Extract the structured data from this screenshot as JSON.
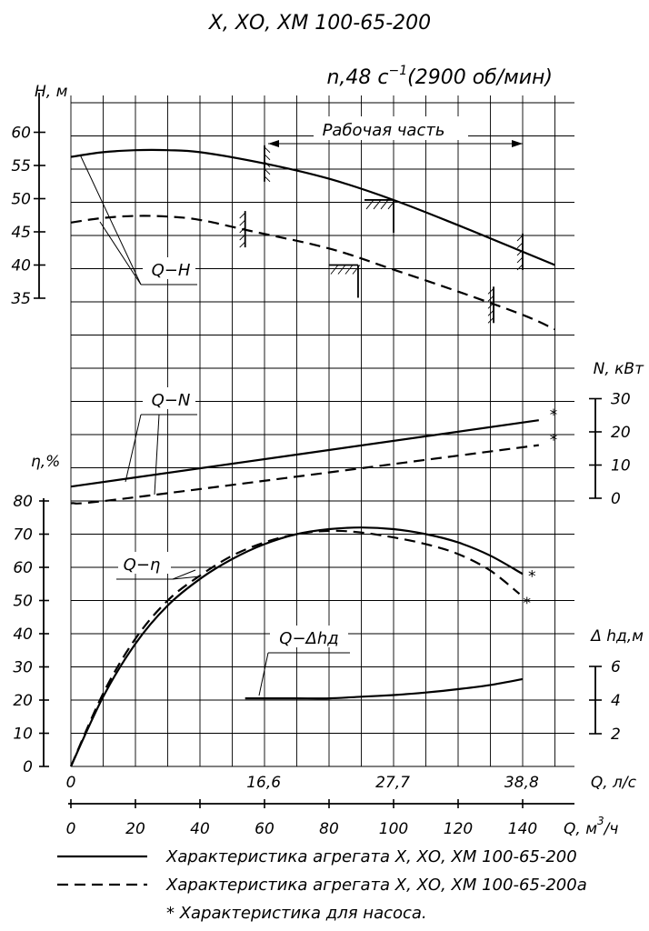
{
  "title": "Х, ХО, ХМ 100-65-200",
  "speed_label": "n,48 с",
  "speed_exp": "−1",
  "speed_rpm": "(2900 об/мин)",
  "working_zone_label": "Рабочая часть",
  "curve_labels": {
    "qh": "Q−H",
    "qn": "Q−N",
    "qeta": "Q−η",
    "qdh": "Q−Δhд"
  },
  "legend": [
    {
      "style": "solid",
      "text": "Характеристика агрегата Х, ХО, ХМ 100-65-200"
    },
    {
      "style": "dashed",
      "text": "Характеристика агрегата Х, ХО, ХМ 100-65-200а"
    }
  ],
  "footnote": "* Характеристика для насоса.",
  "chart_data": {
    "type": "line",
    "x_axes": {
      "q_ls": {
        "label": "Q, л/с",
        "ticks": [
          "0",
          "16,6",
          "27,7",
          "38,8"
        ],
        "tick_values": [
          0,
          16.6,
          27.7,
          38.8
        ]
      },
      "q_m3h": {
        "label": "Q, м",
        "unit_exp": "3",
        "unit_tail": "/ч",
        "ticks": [
          "0",
          "20",
          "40",
          "60",
          "80",
          "100",
          "120",
          "140"
        ],
        "tick_values": [
          0,
          20,
          40,
          60,
          80,
          100,
          120,
          140
        ]
      }
    },
    "xlim_m3h": [
      0,
      156
    ],
    "grid": true,
    "panels": [
      {
        "name": "Q-H",
        "ylabel": "H, м",
        "yticks": [
          "35",
          "40",
          "45",
          "50",
          "55",
          "60"
        ],
        "ylim": [
          35,
          60
        ],
        "series": [
          {
            "style": "solid",
            "x": [
              0,
              10,
              20,
              30,
              40,
              60,
              80,
              100,
              120,
              140,
              150
            ],
            "y": [
              56.3,
              57.0,
              57.3,
              57.3,
              57.0,
              55.3,
              53.0,
              49.8,
              46.0,
              42.0,
              40.0
            ]
          },
          {
            "style": "dashed",
            "x": [
              0,
              10,
              20,
              30,
              40,
              55,
              80,
              100,
              120,
              140,
              150
            ],
            "y": [
              46.4,
              47.1,
              47.4,
              47.3,
              46.8,
              45.2,
              42.5,
              39.3,
              36.0,
              32.5,
              30.3
            ]
          }
        ],
        "working_zone_m3h": [
          60,
          140
        ]
      },
      {
        "name": "Q-N",
        "ylabel": "N, кВт",
        "yticks": [
          "0",
          "10",
          "20",
          "30"
        ],
        "ylim": [
          0,
          30
        ],
        "series": [
          {
            "style": "solid",
            "x": [
              0,
              145
            ],
            "y": [
              3.5,
              23.5
            ]
          },
          {
            "style": "dashed",
            "x": [
              0,
              20,
              145
            ],
            "y": [
              -1.5,
              0.3,
              16.0
            ]
          }
        ]
      },
      {
        "name": "Q-η",
        "ylabel": "η,%",
        "yticks": [
          "0",
          "10",
          "20",
          "30",
          "40",
          "50",
          "60",
          "70",
          "80"
        ],
        "ylim": [
          0,
          80
        ],
        "series": [
          {
            "style": "solid",
            "x": [
              0,
              10,
              20,
              30,
              40,
              50,
              60,
              70,
              80,
              90,
              100,
              110,
              120,
              130,
              140
            ],
            "y": [
              0,
              21,
              37,
              48.5,
              56.5,
              62.5,
              67,
              70,
              71.5,
              72,
              71.5,
              70,
              67.5,
              63.5,
              58
            ]
          },
          {
            "style": "dashed",
            "x": [
              0,
              10,
              20,
              30,
              40,
              50,
              60,
              70,
              80,
              90,
              100,
              110,
              120,
              130,
              139
            ],
            "y": [
              0,
              22,
              38.5,
              50,
              57.5,
              63.5,
              67.5,
              70,
              71,
              70.5,
              69,
              67,
              64,
              59,
              52
            ]
          }
        ]
      },
      {
        "name": "Q-Δhд",
        "ylabel": "Δ hд,м",
        "yticks": [
          "2",
          "4",
          "6"
        ],
        "ylim": [
          2,
          6
        ],
        "series": [
          {
            "style": "solid",
            "x": [
              54,
              60,
              70,
              80,
              90,
              100,
              110,
              120,
              130,
              140
            ],
            "y": [
              4.1,
              4.1,
              4.1,
              4.1,
              4.2,
              4.3,
              4.45,
              4.65,
              4.9,
              5.25
            ]
          }
        ]
      }
    ]
  }
}
